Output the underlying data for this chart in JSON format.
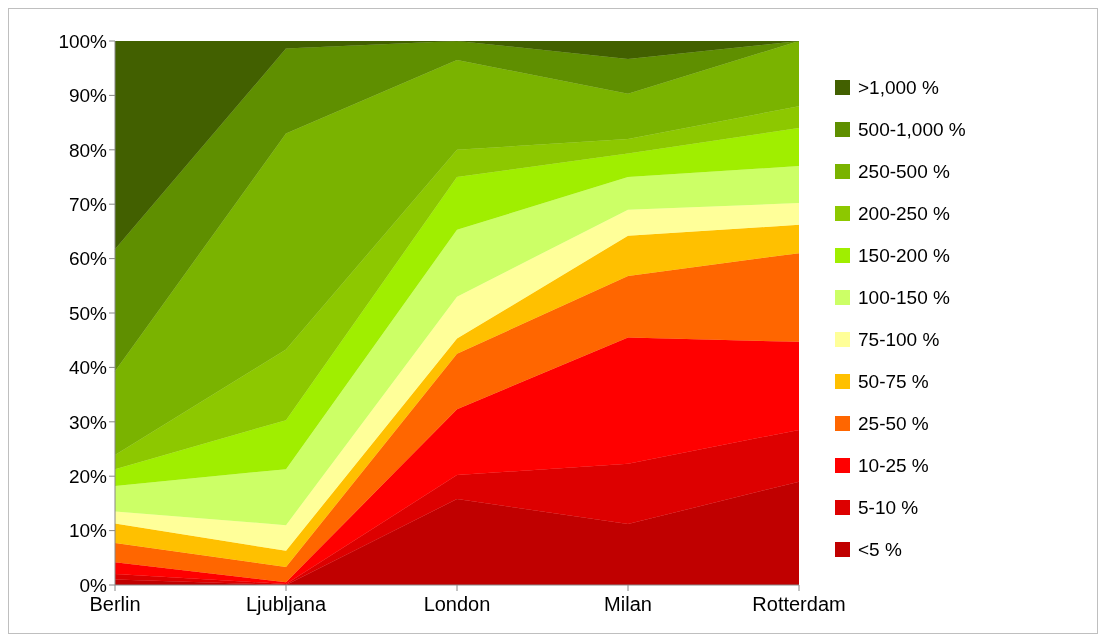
{
  "chart_data": {
    "type": "area",
    "stacked": true,
    "categories": [
      "Berlin",
      "Ljubljana",
      "London",
      "Milan",
      "Rotterdam"
    ],
    "ylim": [
      0,
      100
    ],
    "yticks": [
      {
        "value": 0,
        "label": "0%"
      },
      {
        "value": 10,
        "label": "10%"
      },
      {
        "value": 20,
        "label": "20%"
      },
      {
        "value": 30,
        "label": "30%"
      },
      {
        "value": 40,
        "label": "40%"
      },
      {
        "value": 50,
        "label": "50%"
      },
      {
        "value": 60,
        "label": "60%"
      },
      {
        "value": 70,
        "label": "70%"
      },
      {
        "value": 80,
        "label": "80%"
      },
      {
        "value": 90,
        "label": "90%"
      },
      {
        "value": 100,
        "label": "100%"
      }
    ],
    "grid": false,
    "legend": "right",
    "series": [
      {
        "name": "<5 %",
        "color": "#c00000",
        "values": [
          1,
          0,
          15.8,
          11.2,
          19
        ]
      },
      {
        "name": "5-10 %",
        "color": "#dd0000",
        "values": [
          1,
          0.2,
          4.4,
          11.1,
          9.5
        ]
      },
      {
        "name": "10-25 %",
        "color": "#ff0000",
        "values": [
          2.2,
          0.3,
          12.1,
          23.2,
          16.2
        ]
      },
      {
        "name": "25-50 %",
        "color": "#ff6600",
        "values": [
          3.5,
          2.8,
          10.2,
          11.3,
          16.3
        ]
      },
      {
        "name": "50-75 %",
        "color": "#ffc000",
        "values": [
          3.6,
          3,
          2.8,
          7.4,
          5.2
        ]
      },
      {
        "name": "75-100 %",
        "color": "#ffff99",
        "values": [
          2.2,
          4.7,
          7.7,
          4.8,
          4
        ]
      },
      {
        "name": "100-150 %",
        "color": "#ccff66",
        "values": [
          4.7,
          10.3,
          12.3,
          6,
          6.8
        ]
      },
      {
        "name": "150-200 %",
        "color": "#a0ee00",
        "values": [
          3.1,
          9,
          9.7,
          4.3,
          7
        ]
      },
      {
        "name": "200-250 %",
        "color": "#8dc800",
        "values": [
          2.6,
          13,
          5,
          2.7,
          4
        ]
      },
      {
        "name": "250-500 %",
        "color": "#7ab300",
        "values": [
          15.4,
          39.7,
          16.5,
          8.3,
          12
        ]
      },
      {
        "name": "500-1,000 %",
        "color": "#5f8f00",
        "values": [
          22.4,
          15.6,
          3.5,
          6.4,
          0
        ]
      },
      {
        "name": ">1,000 %",
        "color": "#426000",
        "values": [
          38.3,
          1.4,
          0,
          3.3,
          0
        ]
      }
    ]
  }
}
